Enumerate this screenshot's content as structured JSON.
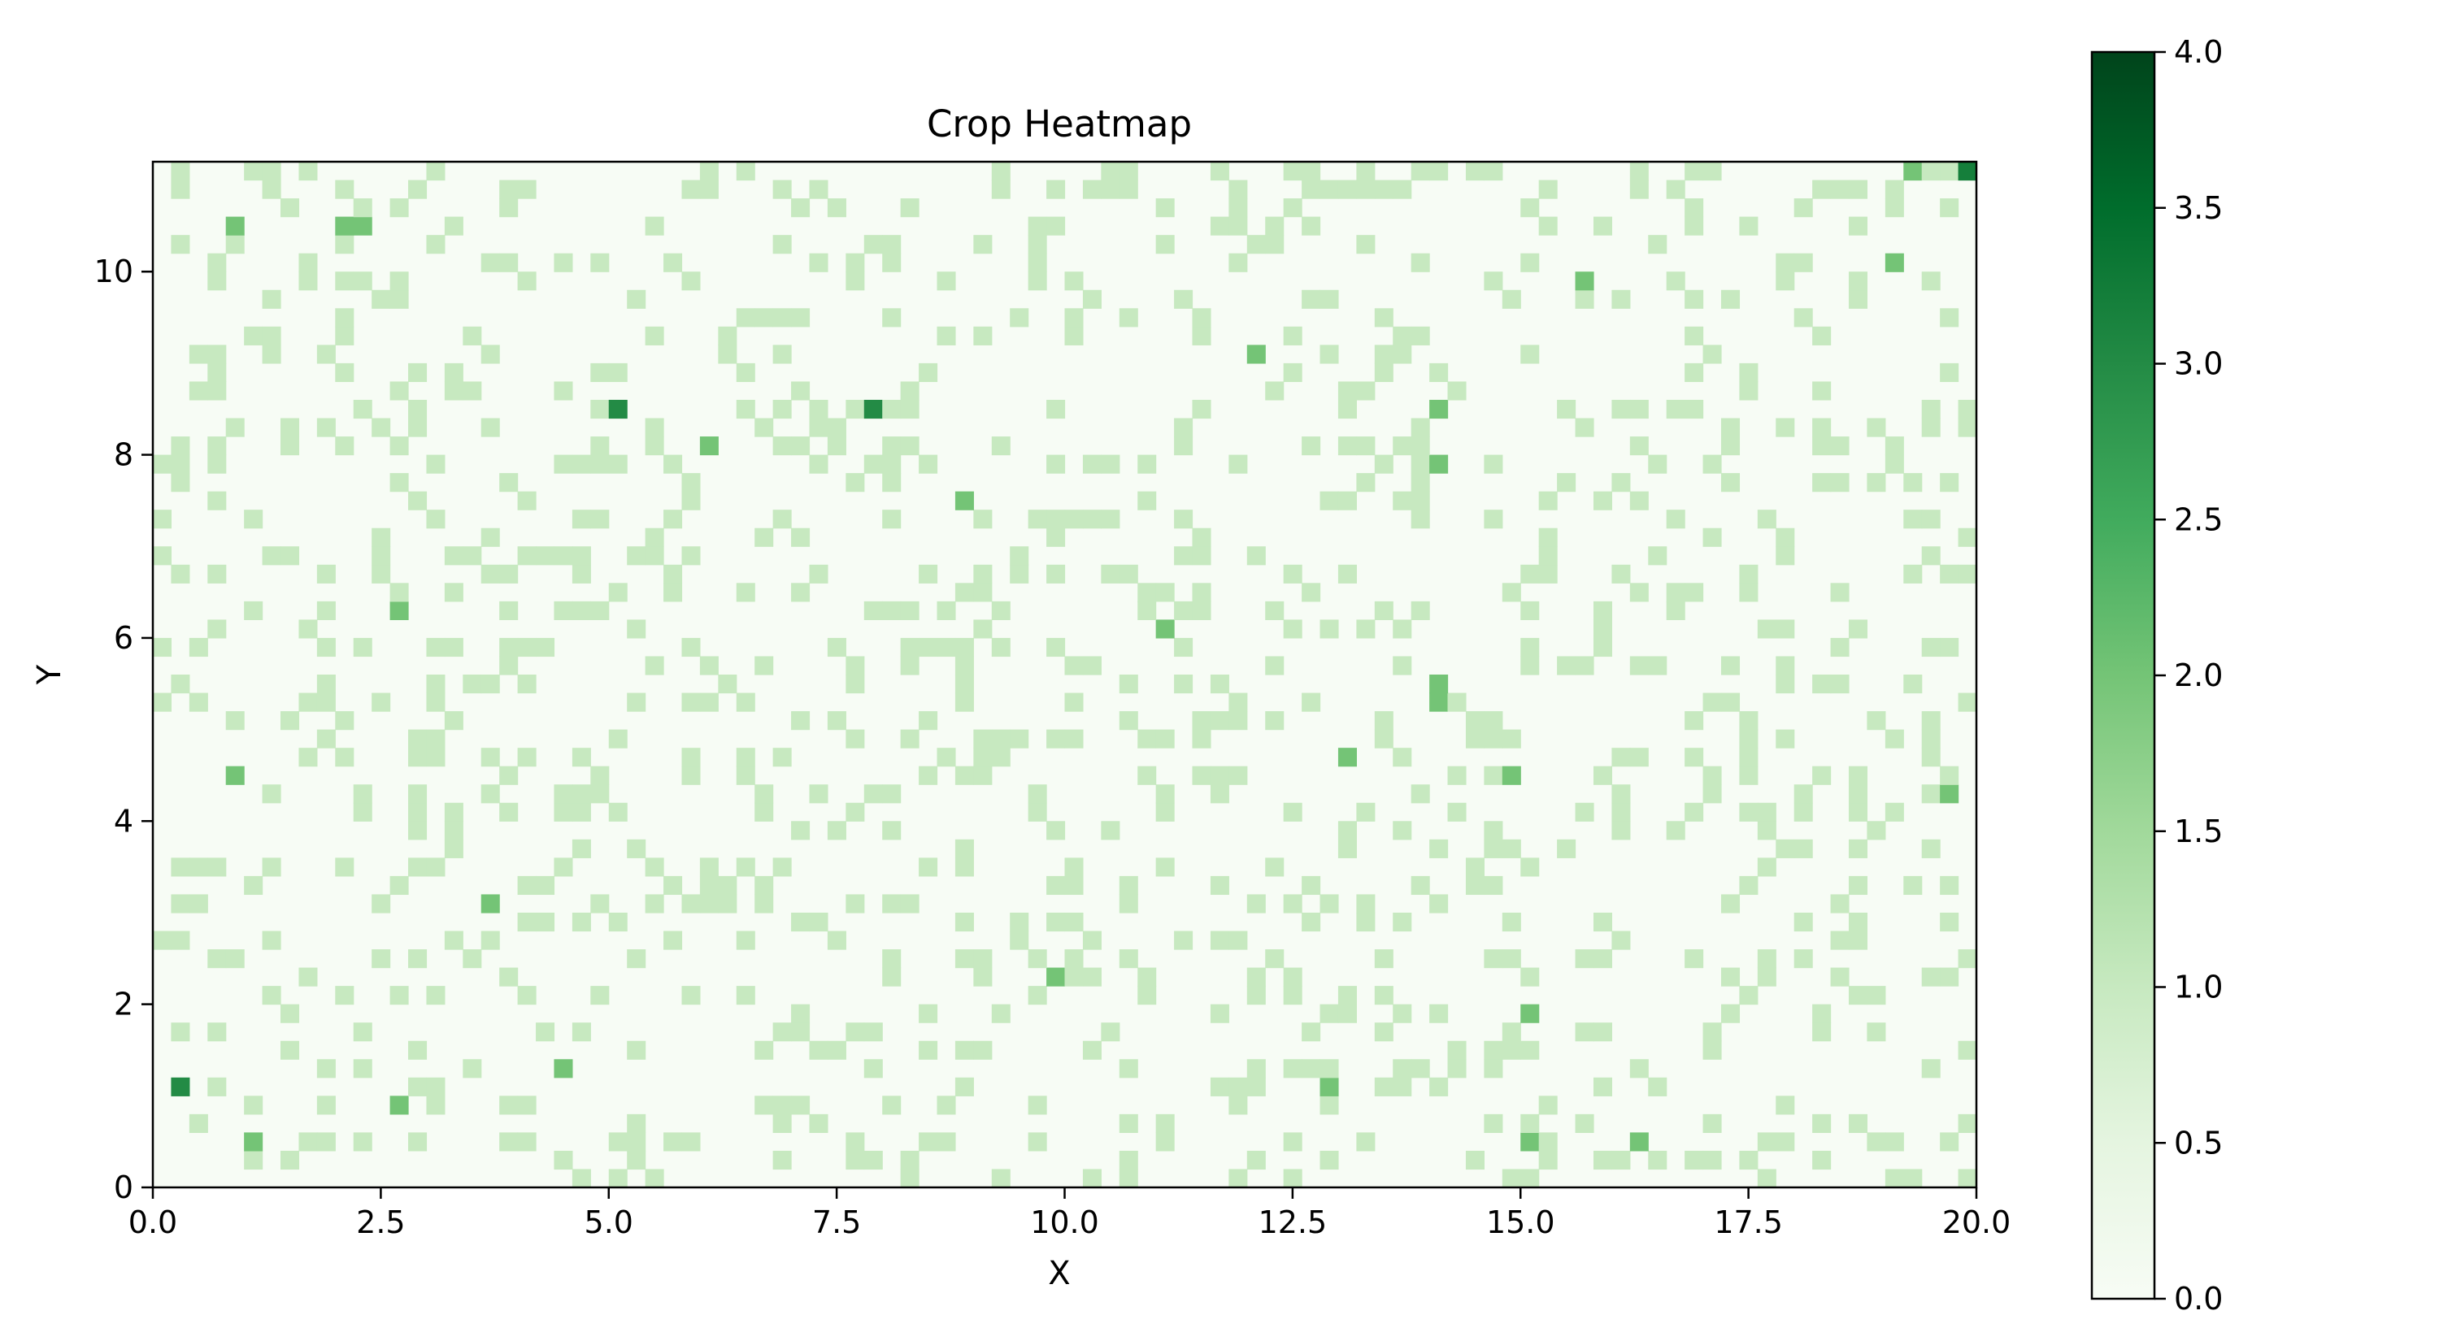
{
  "chart_data": {
    "type": "heatmap",
    "title": "Crop Heatmap",
    "xlabel": "X",
    "ylabel": "Y",
    "xlim": [
      0,
      20
    ],
    "ylim": [
      0,
      11.2
    ],
    "cell_width": 0.2,
    "cell_height": 0.2,
    "x_ticks": [
      0,
      2.5,
      5,
      7.5,
      10,
      12.5,
      15,
      17.5,
      20
    ],
    "x_tick_labels": [
      "0.0",
      "2.5",
      "5.0",
      "7.5",
      "10.0",
      "12.5",
      "15.0",
      "17.5",
      "20.0"
    ],
    "y_ticks": [
      0,
      2,
      4,
      6,
      8,
      10
    ],
    "y_tick_labels": [
      "0",
      "2",
      "4",
      "6",
      "8",
      "10"
    ],
    "colorbar": {
      "vmin": 0,
      "vmax": 4,
      "ticks": [
        0,
        0.5,
        1,
        1.5,
        2,
        2.5,
        3,
        3.5,
        4
      ],
      "tick_labels": [
        "0.0",
        "0.5",
        "1.0",
        "1.5",
        "2.0",
        "2.5",
        "3.0",
        "3.5",
        "4.0"
      ],
      "colormap": "Greens",
      "colors": [
        "#f7fcf5",
        "#e5f5e0",
        "#c7e9c0",
        "#a1d99b",
        "#74c476",
        "#41ab5d",
        "#238b45",
        "#006d2c",
        "#00441b"
      ]
    },
    "background_value": 0,
    "random_value_one_density": 0.17,
    "cells": [
      {
        "x": 19.9,
        "y": 11.1,
        "value": 3.2
      },
      {
        "x": 19.7,
        "y": 11.1,
        "value": 1.0
      },
      {
        "x": 19.5,
        "y": 11.1,
        "value": 1.0
      },
      {
        "x": 19.3,
        "y": 11.1,
        "value": 2.0
      },
      {
        "x": 0.8,
        "y": 10.6,
        "value": 2.0
      },
      {
        "x": 2.0,
        "y": 10.4,
        "value": 2.0
      },
      {
        "x": 2.4,
        "y": 10.4,
        "value": 2.0
      },
      {
        "x": 19.0,
        "y": 10.2,
        "value": 2.0
      },
      {
        "x": 15.6,
        "y": 9.8,
        "value": 2.0
      },
      {
        "x": 12.0,
        "y": 9.2,
        "value": 2.0
      },
      {
        "x": 5.0,
        "y": 8.6,
        "value": 3.0
      },
      {
        "x": 7.8,
        "y": 8.6,
        "value": 3.0
      },
      {
        "x": 14.2,
        "y": 8.6,
        "value": 2.0
      },
      {
        "x": 6.0,
        "y": 8.0,
        "value": 2.0
      },
      {
        "x": 14.0,
        "y": 7.8,
        "value": 2.0
      },
      {
        "x": 8.8,
        "y": 7.6,
        "value": 2.0
      },
      {
        "x": 2.6,
        "y": 6.2,
        "value": 2.0
      },
      {
        "x": 11.0,
        "y": 6.0,
        "value": 2.0
      },
      {
        "x": 14.2,
        "y": 5.6,
        "value": 2.0
      },
      {
        "x": 14.2,
        "y": 5.2,
        "value": 2.0
      },
      {
        "x": 13.2,
        "y": 4.8,
        "value": 2.0
      },
      {
        "x": 0.8,
        "y": 4.6,
        "value": 2.0
      },
      {
        "x": 14.8,
        "y": 4.6,
        "value": 2.0
      },
      {
        "x": 19.6,
        "y": 4.2,
        "value": 2.0
      },
      {
        "x": 3.8,
        "y": 3.0,
        "value": 2.0
      },
      {
        "x": 9.8,
        "y": 2.4,
        "value": 2.0
      },
      {
        "x": 15.2,
        "y": 1.8,
        "value": 2.0
      },
      {
        "x": 4.4,
        "y": 1.4,
        "value": 2.0
      },
      {
        "x": 0.2,
        "y": 1.2,
        "value": 3.0
      },
      {
        "x": 12.8,
        "y": 1.2,
        "value": 2.0
      },
      {
        "x": 2.6,
        "y": 0.8,
        "value": 2.0
      },
      {
        "x": 1.0,
        "y": 0.6,
        "value": 2.0
      },
      {
        "x": 15.0,
        "y": 0.6,
        "value": 2.0
      },
      {
        "x": 16.4,
        "y": 0.4,
        "value": 2.0
      }
    ]
  }
}
